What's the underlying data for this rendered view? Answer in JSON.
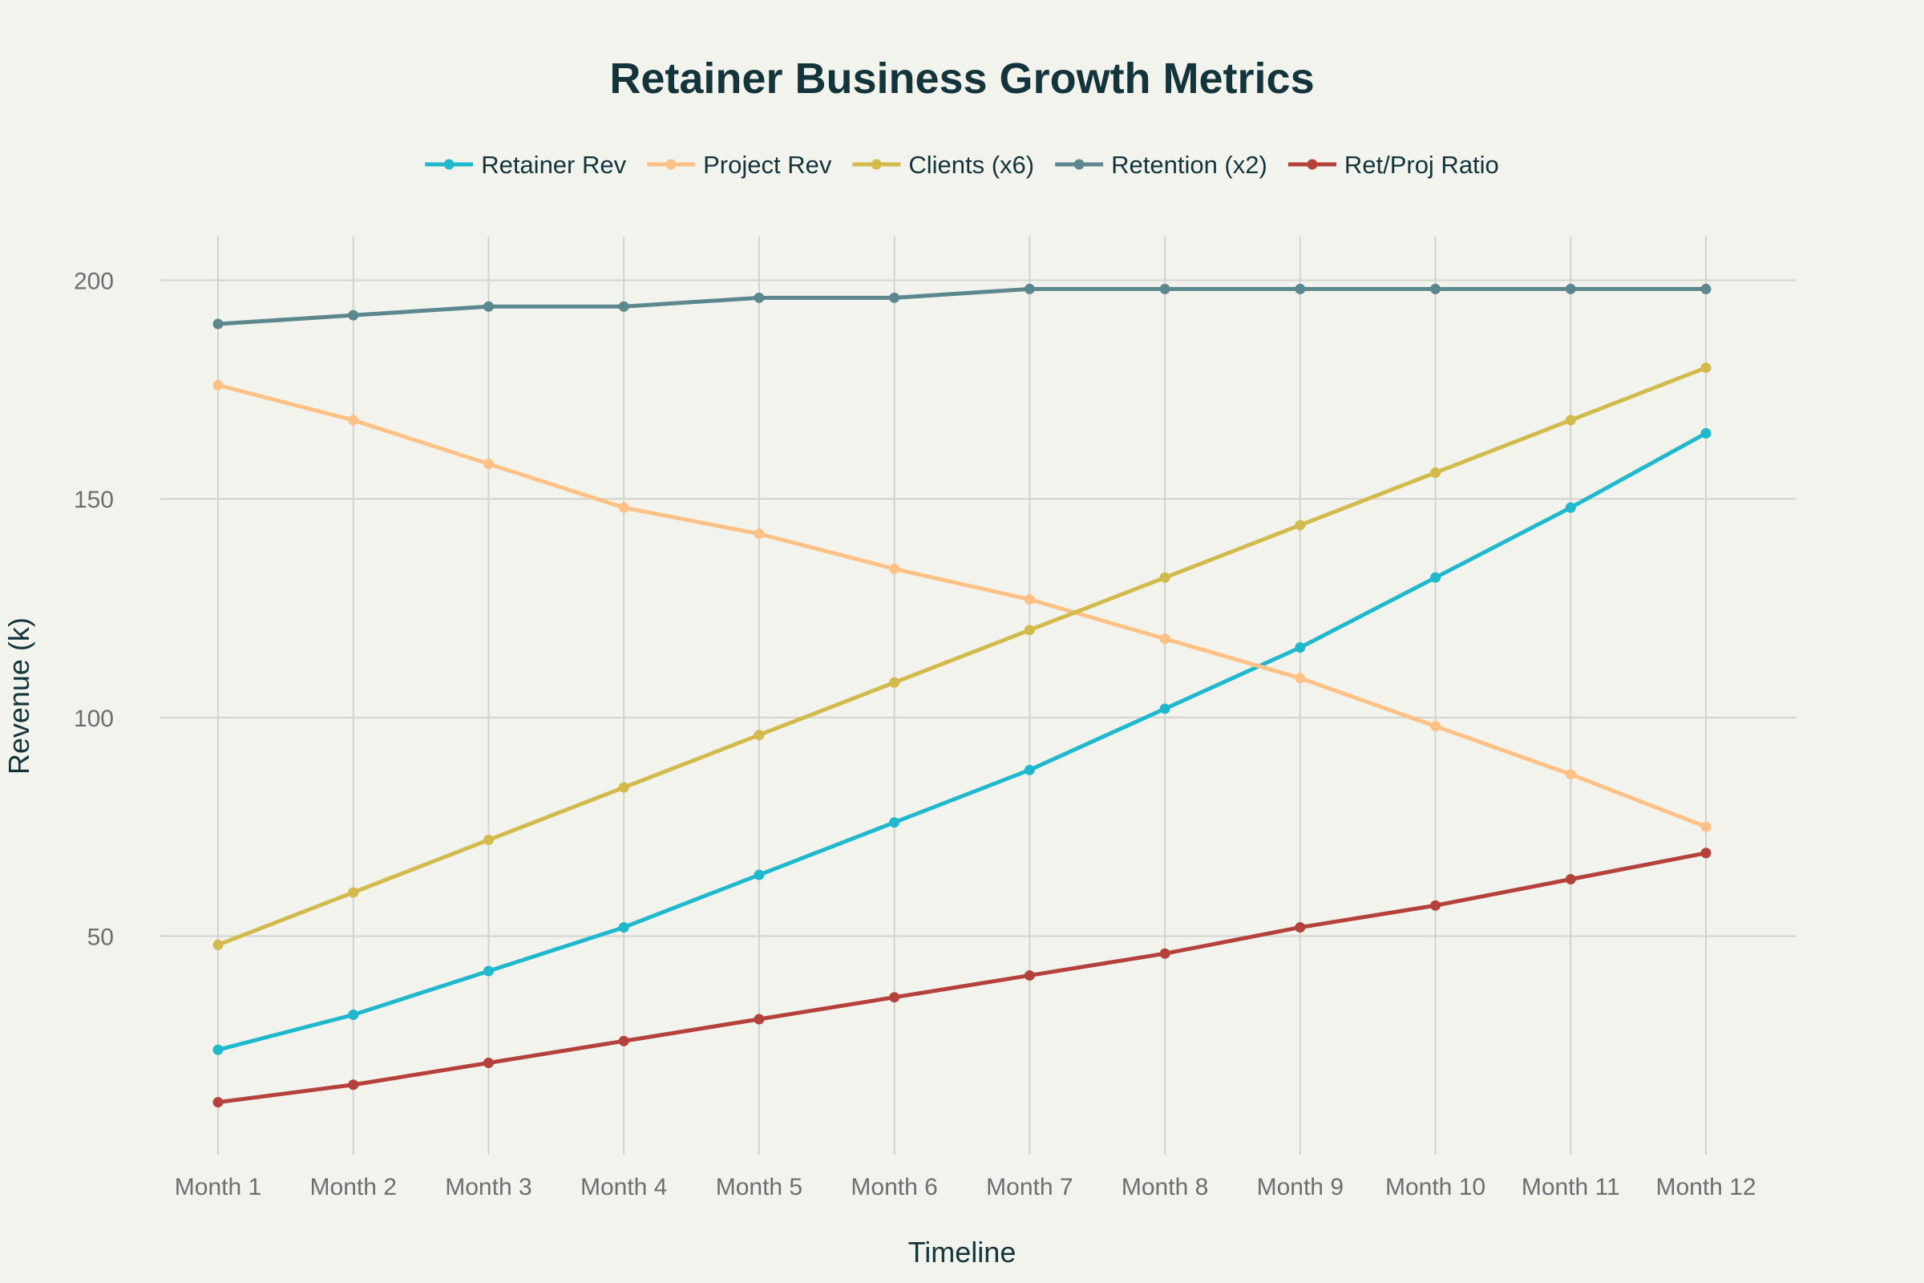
{
  "chart_data": {
    "type": "line",
    "title": "Retainer Business Growth Metrics",
    "xlabel": "Timeline",
    "ylabel": "Revenue (k)",
    "categories": [
      "Month 1",
      "Month 2",
      "Month 3",
      "Month 4",
      "Month 5",
      "Month 6",
      "Month 7",
      "Month 8",
      "Month 9",
      "Month 10",
      "Month 11",
      "Month 12"
    ],
    "ylim": [
      0,
      210
    ],
    "yticks": [
      50,
      100,
      150,
      200
    ],
    "grid": true,
    "legend_position": "top-center",
    "series": [
      {
        "name": "Retainer Rev",
        "color": "#1fb8cd",
        "values": [
          24,
          32,
          42,
          52,
          64,
          76,
          88,
          102,
          116,
          132,
          148,
          165
        ]
      },
      {
        "name": "Project Rev",
        "color": "#ffc185",
        "values": [
          176,
          168,
          158,
          148,
          142,
          134,
          127,
          118,
          109,
          98,
          87,
          75
        ]
      },
      {
        "name": "Clients (x6)",
        "color": "#d2ba4c",
        "values": [
          48,
          60,
          72,
          84,
          96,
          108,
          120,
          132,
          144,
          156,
          168,
          180
        ]
      },
      {
        "name": "Retention (x2)",
        "color": "#5d878f",
        "values": [
          190,
          192,
          194,
          194,
          196,
          196,
          198,
          198,
          198,
          198,
          198,
          198
        ]
      },
      {
        "name": "Ret/Proj Ratio",
        "color": "#b4413c",
        "values": [
          12,
          16,
          21,
          26,
          31,
          36,
          41,
          46,
          52,
          57,
          63,
          69
        ]
      }
    ]
  }
}
